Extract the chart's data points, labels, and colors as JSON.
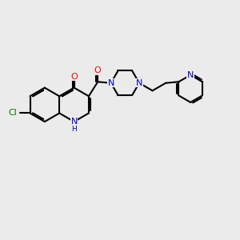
{
  "bg_color": "#ebebeb",
  "bond_color": "#000000",
  "bond_width": 1.5,
  "atom_colors": {
    "N": "#0000cc",
    "O": "#ff0000",
    "Cl": "#008000",
    "C": "#000000",
    "H": "#0000cc"
  },
  "font_size": 8.0,
  "fig_size": [
    3.0,
    3.0
  ],
  "dpi": 100,
  "xlim": [
    0,
    10
  ],
  "ylim": [
    0,
    10
  ]
}
